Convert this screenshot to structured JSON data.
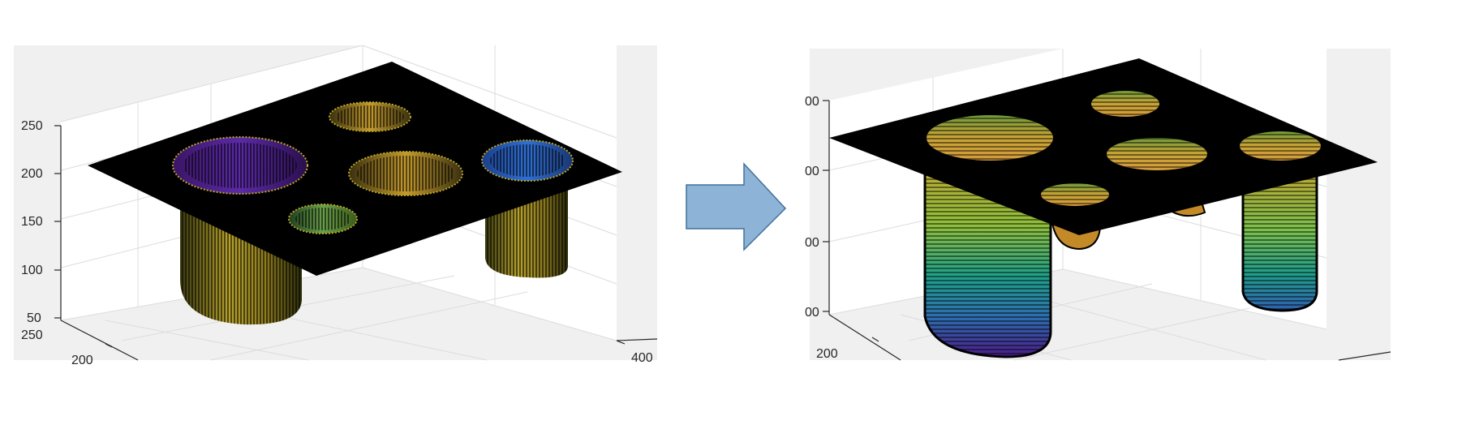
{
  "chart_data": [
    {
      "type": "surface",
      "panel": "left",
      "title": "",
      "xlabel": "",
      "ylabel": "",
      "zlabel": "",
      "z_ticks": [
        "250",
        "200",
        "150",
        "100",
        "50"
      ],
      "y_ticks": [
        "250",
        "200"
      ],
      "x_ticks": [
        "400"
      ],
      "zlim": [
        50,
        250
      ],
      "grid": true,
      "background": "#f0f0f0",
      "colormap": [
        "#440154",
        "#3b528b",
        "#21918c",
        "#5ec962",
        "#fde725"
      ],
      "surface_edge_color": "#000000"
    },
    {
      "type": "surface",
      "panel": "right",
      "title": "",
      "xlabel": "",
      "ylabel": "",
      "zlabel": "",
      "z_ticks": [
        "00",
        "00",
        "00",
        "00"
      ],
      "y_ticks": [
        "200"
      ],
      "x_ticks": [],
      "grid": true,
      "background": "#f0f0f0",
      "colormap": [
        "#440154",
        "#3b528b",
        "#21918c",
        "#5ec962",
        "#fde725"
      ],
      "surface_edge_color": "#000000"
    }
  ],
  "arrow": {
    "fill": "#8db3d6",
    "stroke": "#41719c",
    "icon": "right-arrow-icon"
  }
}
